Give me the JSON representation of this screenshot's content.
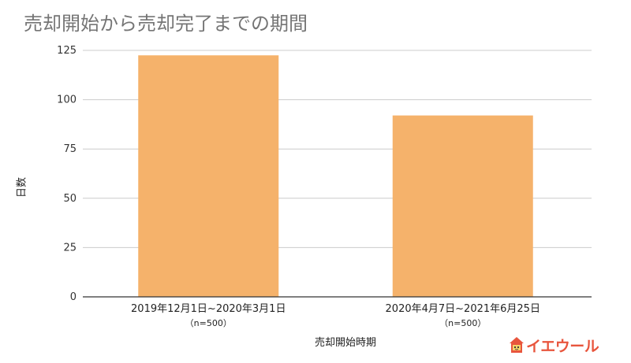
{
  "chart_data": {
    "type": "bar",
    "title": "売却開始から売却完了までの期間",
    "xlabel": "売却開始時期",
    "ylabel": "日数",
    "categories": [
      "2019年12月1日~2020年3月1日",
      "2020年4月7日~2021年6月25日"
    ],
    "category_notes": [
      "（n=500）",
      "（n=500）"
    ],
    "values": [
      122.5,
      92
    ],
    "ylim": [
      0,
      125
    ],
    "yticks": [
      0,
      25,
      50,
      75,
      100,
      125
    ],
    "grid": true,
    "legend": "none",
    "bar_color": "#f5b26b"
  },
  "logo": {
    "text": "イエウール",
    "color": "#e8553d"
  }
}
